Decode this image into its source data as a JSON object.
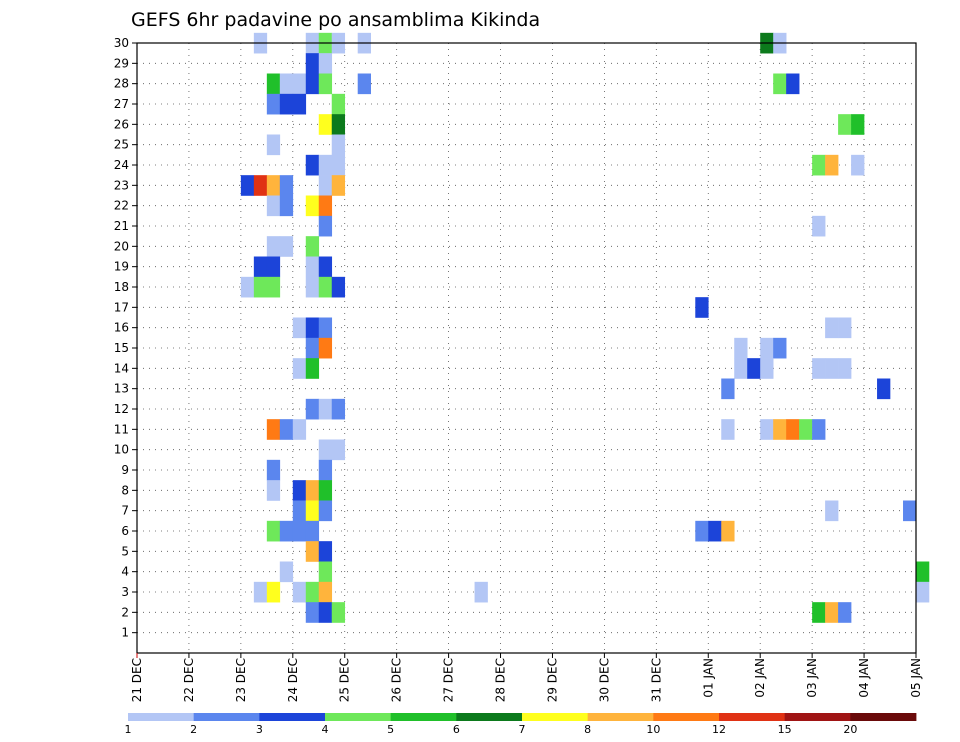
{
  "chart_data": {
    "type": "heatmap",
    "title": "GEFS 6hr padavine po ansamblima Kikinda",
    "xlabel": "",
    "ylabel": "",
    "x_tick_labels": [
      "21 DEC",
      "22 DEC",
      "23 DEC",
      "24 DEC",
      "25 DEC",
      "26 DEC",
      "27 DEC",
      "28 DEC",
      "29 DEC",
      "30 DEC",
      "31 DEC",
      "01 JAN",
      "02 JAN",
      "03 JAN",
      "04 JAN",
      "05 JAN"
    ],
    "x_range_days": [
      0,
      15
    ],
    "y_range": [
      0,
      30
    ],
    "y_ticks": [
      1,
      2,
      3,
      4,
      5,
      6,
      7,
      8,
      9,
      10,
      11,
      12,
      13,
      14,
      15,
      16,
      17,
      18,
      19,
      20,
      21,
      22,
      23,
      24,
      25,
      26,
      27,
      28,
      29,
      30
    ],
    "time_step_hours": 6,
    "grid": true,
    "colorbar": {
      "placement": "bottom",
      "labels": [
        "1",
        "2",
        "3",
        "4",
        "5",
        "6",
        "7",
        "8",
        "10",
        "12",
        "15",
        "20"
      ],
      "colors": [
        "#b3c6f5",
        "#5b86ee",
        "#1c44d9",
        "#6ee85a",
        "#20c02a",
        "#0c7a1c",
        "#ffff1e",
        "#ffb43c",
        "#ff7a14",
        "#e03214",
        "#a01414",
        "#6a0a0a"
      ]
    },
    "cells_note": "each cell: [member, time-step index from 21 DEC 00 UTC (6 h), colour class 1-12]",
    "cells": [
      [
        30,
        9,
        1
      ],
      [
        30,
        13,
        1
      ],
      [
        30,
        14,
        4
      ],
      [
        30,
        15,
        1
      ],
      [
        30,
        17,
        1
      ],
      [
        30,
        48,
        6
      ],
      [
        30,
        49,
        1
      ],
      [
        29,
        13,
        3
      ],
      [
        29,
        14,
        1
      ],
      [
        28,
        10,
        5
      ],
      [
        28,
        11,
        1
      ],
      [
        28,
        12,
        1
      ],
      [
        28,
        13,
        3
      ],
      [
        28,
        14,
        4
      ],
      [
        28,
        17,
        2
      ],
      [
        28,
        49,
        4
      ],
      [
        28,
        50,
        3
      ],
      [
        27,
        10,
        2
      ],
      [
        27,
        11,
        3
      ],
      [
        27,
        12,
        3
      ],
      [
        27,
        15,
        4
      ],
      [
        26,
        14,
        7
      ],
      [
        26,
        15,
        6
      ],
      [
        26,
        54,
        4
      ],
      [
        26,
        55,
        5
      ],
      [
        25,
        10,
        1
      ],
      [
        25,
        15,
        1
      ],
      [
        24,
        13,
        3
      ],
      [
        24,
        14,
        1
      ],
      [
        24,
        15,
        1
      ],
      [
        24,
        52,
        4
      ],
      [
        24,
        53,
        8
      ],
      [
        24,
        55,
        1
      ],
      [
        23,
        8,
        3
      ],
      [
        23,
        9,
        10
      ],
      [
        23,
        10,
        8
      ],
      [
        23,
        11,
        2
      ],
      [
        23,
        14,
        1
      ],
      [
        23,
        15,
        8
      ],
      [
        22,
        10,
        1
      ],
      [
        22,
        11,
        2
      ],
      [
        22,
        13,
        7
      ],
      [
        22,
        14,
        9
      ],
      [
        21,
        14,
        2
      ],
      [
        21,
        52,
        1
      ],
      [
        20,
        10,
        1
      ],
      [
        20,
        11,
        1
      ],
      [
        20,
        13,
        4
      ],
      [
        19,
        9,
        3
      ],
      [
        19,
        10,
        3
      ],
      [
        19,
        13,
        1
      ],
      [
        19,
        14,
        3
      ],
      [
        18,
        8,
        1
      ],
      [
        18,
        9,
        4
      ],
      [
        18,
        10,
        4
      ],
      [
        18,
        13,
        1
      ],
      [
        18,
        14,
        4
      ],
      [
        18,
        15,
        3
      ],
      [
        17,
        43,
        3
      ],
      [
        16,
        12,
        1
      ],
      [
        16,
        13,
        3
      ],
      [
        16,
        14,
        2
      ],
      [
        16,
        53,
        1
      ],
      [
        16,
        54,
        1
      ],
      [
        15,
        13,
        2
      ],
      [
        15,
        14,
        9
      ],
      [
        15,
        46,
        1
      ],
      [
        15,
        48,
        1
      ],
      [
        15,
        49,
        2
      ],
      [
        14,
        12,
        1
      ],
      [
        14,
        13,
        5
      ],
      [
        14,
        46,
        1
      ],
      [
        14,
        47,
        3
      ],
      [
        14,
        48,
        1
      ],
      [
        14,
        52,
        1
      ],
      [
        14,
        53,
        1
      ],
      [
        14,
        54,
        1
      ],
      [
        13,
        45,
        2
      ],
      [
        13,
        57,
        3
      ],
      [
        12,
        13,
        2
      ],
      [
        12,
        14,
        1
      ],
      [
        12,
        15,
        2
      ],
      [
        11,
        10,
        9
      ],
      [
        11,
        11,
        2
      ],
      [
        11,
        12,
        1
      ],
      [
        11,
        45,
        1
      ],
      [
        11,
        48,
        1
      ],
      [
        11,
        49,
        8
      ],
      [
        11,
        50,
        9
      ],
      [
        11,
        51,
        4
      ],
      [
        11,
        52,
        2
      ],
      [
        10,
        14,
        1
      ],
      [
        10,
        15,
        1
      ],
      [
        9,
        10,
        2
      ],
      [
        9,
        14,
        2
      ],
      [
        8,
        10,
        1
      ],
      [
        8,
        12,
        3
      ],
      [
        8,
        13,
        8
      ],
      [
        8,
        14,
        5
      ],
      [
        7,
        12,
        2
      ],
      [
        7,
        13,
        7
      ],
      [
        7,
        14,
        2
      ],
      [
        7,
        53,
        1
      ],
      [
        7,
        59,
        2
      ],
      [
        6,
        10,
        4
      ],
      [
        6,
        11,
        2
      ],
      [
        6,
        12,
        2
      ],
      [
        6,
        13,
        2
      ],
      [
        6,
        43,
        2
      ],
      [
        6,
        44,
        3
      ],
      [
        6,
        45,
        8
      ],
      [
        5,
        13,
        8
      ],
      [
        5,
        14,
        3
      ],
      [
        4,
        11,
        1
      ],
      [
        4,
        14,
        4
      ],
      [
        4,
        60,
        5
      ],
      [
        3,
        9,
        1
      ],
      [
        3,
        10,
        7
      ],
      [
        3,
        12,
        1
      ],
      [
        3,
        13,
        4
      ],
      [
        3,
        14,
        8
      ],
      [
        3,
        26,
        1
      ],
      [
        3,
        60,
        1
      ],
      [
        2,
        13,
        2
      ],
      [
        2,
        14,
        3
      ],
      [
        2,
        15,
        4
      ],
      [
        2,
        52,
        5
      ],
      [
        2,
        53,
        8
      ],
      [
        2,
        54,
        2
      ]
    ]
  }
}
